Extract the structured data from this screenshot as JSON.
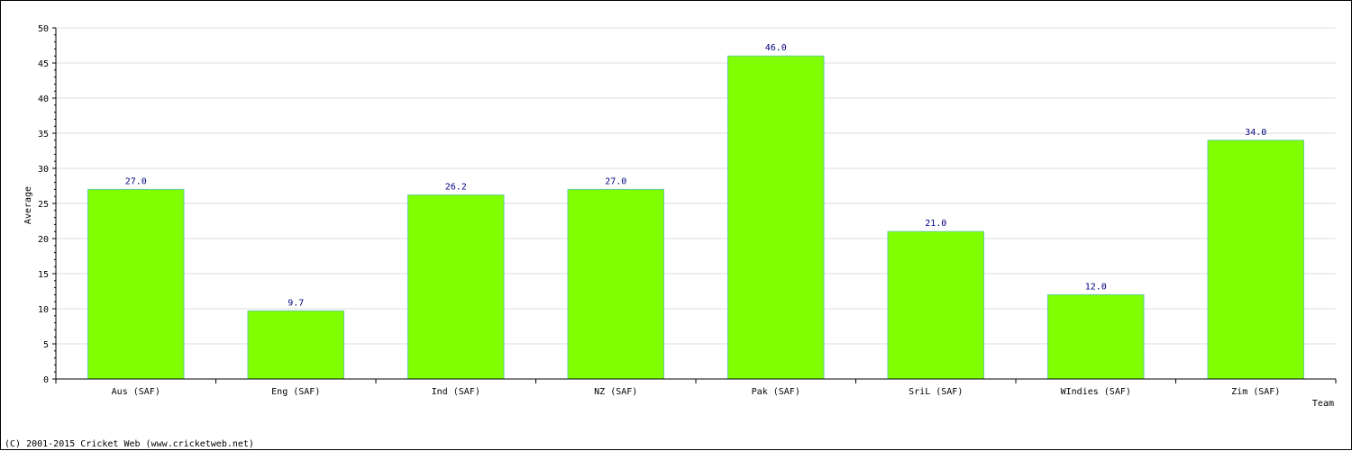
{
  "chart_data": {
    "type": "bar",
    "categories": [
      "Aus (SAF)",
      "Eng (SAF)",
      "Ind (SAF)",
      "NZ (SAF)",
      "Pak (SAF)",
      "SriL (SAF)",
      "WIndies (SAF)",
      "Zim (SAF)"
    ],
    "values": [
      27.0,
      9.7,
      26.2,
      27.0,
      46.0,
      21.0,
      12.0,
      34.0
    ],
    "value_labels": [
      "27.0",
      "9.7",
      "26.2",
      "27.0",
      "46.0",
      "21.0",
      "12.0",
      "34.0"
    ],
    "title": "",
    "xlabel": "Team",
    "ylabel": "Average",
    "ylim": [
      0,
      50
    ],
    "yticks": [
      0,
      5,
      10,
      15,
      20,
      25,
      30,
      35,
      40,
      45,
      50
    ],
    "grid": true,
    "legend": "none"
  },
  "colors": {
    "bar_fill": "#80ff00",
    "bar_edge": "#66cc99",
    "value_label": "#000080",
    "grid": "#dddddd",
    "axis": "#000000"
  },
  "footer": "(C) 2001-2015 Cricket Web (www.cricketweb.net)"
}
